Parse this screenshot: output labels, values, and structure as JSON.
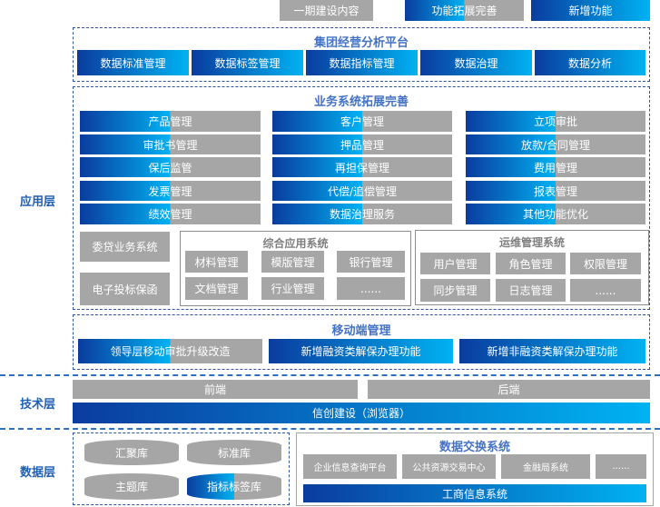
{
  "legend": {
    "existing": "一期建设内容",
    "enhanced": "功能拓展完善",
    "new": "新增功能"
  },
  "layers": {
    "application": "应用层",
    "technology": "技术层",
    "data": "数据层"
  },
  "group_platform": {
    "title": "集团经营分析平台",
    "items": [
      "数据标准管理",
      "数据标签管理",
      "数据指标管理",
      "数据治理",
      "数据分析"
    ]
  },
  "business": {
    "title": "业务系统拓展完善",
    "columns": [
      [
        "产品管理",
        "审批书管理",
        "保后监管",
        "发票管理",
        "绩效管理"
      ],
      [
        "客户管理",
        "押品管理",
        "再担保管理",
        "代偿/追偿管理",
        "数据治理服务"
      ],
      [
        "立项审批",
        "放款/合同管理",
        "费用管理",
        "报表管理",
        "其他功能优化"
      ]
    ],
    "standalone": [
      "委贷业务系统",
      "电子投标保函"
    ],
    "integrated": {
      "title": "综合应用系统",
      "items": [
        "材料管理",
        "模版管理",
        "银行管理",
        "文档管理",
        "行业管理",
        "......"
      ]
    },
    "ops": {
      "title": "运维管理系统",
      "items": [
        "用户管理",
        "角色管理",
        "权限管理",
        "同步管理",
        "日志管理",
        "......"
      ]
    }
  },
  "mobile": {
    "title": "移动端管理",
    "items": [
      "领导层移动审批升级改造",
      "新增融资类解保办理功能",
      "新增非融资类解保办理功能"
    ]
  },
  "tech": {
    "frontend": "前端",
    "backend": "后端",
    "xinchuang": "信创建设（浏览器）"
  },
  "data_layer": {
    "dbs": [
      "汇聚库",
      "标准库",
      "主题库",
      "指标标签库"
    ],
    "exchange": {
      "title": "数据交换系统",
      "items": [
        "企业信息查询平台",
        "公共资源交易中心",
        "金融局系统",
        "......"
      ],
      "bottom": "工商信息系统"
    }
  },
  "colors": {
    "blue_dark": "#0a3c9e",
    "blue_light": "#00b2f2",
    "gray": "#a6a6a6",
    "title_blue": "#4472c4",
    "layer_blue": "#1f5fb4"
  }
}
